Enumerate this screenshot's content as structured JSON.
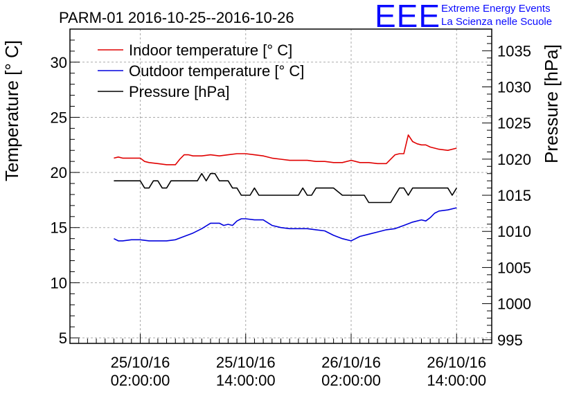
{
  "logo": {
    "letters": "EEE",
    "line1": "Extreme Energy Events",
    "line2": "La Scienza nelle Scuole"
  },
  "chart_data": {
    "type": "line",
    "title": "PARM-01 2016-10-25--2016-10-26",
    "ylabel": "Temperature [° C]",
    "y2label": "Pressure [hPa]",
    "xlabel": "",
    "x_unit": "hours since 2016-10-25 00:00:00",
    "xlim": [
      -6,
      42
    ],
    "ylim": [
      4.5,
      33
    ],
    "y2lim": [
      994.5,
      1038
    ],
    "y_ticks": [
      5,
      10,
      15,
      20,
      25,
      30
    ],
    "y2_ticks": [
      995,
      1000,
      1005,
      1010,
      1015,
      1020,
      1025,
      1030,
      1035
    ],
    "x_ticks": [
      {
        "x": 2,
        "date": "25/10/16",
        "time": "02:00:00"
      },
      {
        "x": 14,
        "date": "25/10/16",
        "time": "14:00:00"
      },
      {
        "x": 26,
        "date": "26/10/16",
        "time": "02:00:00"
      },
      {
        "x": 38,
        "date": "26/10/16",
        "time": "14:00:00"
      }
    ],
    "grid": true,
    "legend_position": "top-left",
    "series": [
      {
        "name": "Indoor temperature [° C]",
        "color": "#e00000",
        "axis": "left",
        "x": [
          -1,
          -0.5,
          0,
          1,
          2,
          2.5,
          3,
          4,
          5,
          6,
          6.5,
          7,
          7.5,
          8,
          9,
          10,
          11,
          12,
          13,
          14,
          15,
          16,
          17,
          18,
          19,
          20,
          21,
          22,
          23,
          24,
          25,
          26,
          27,
          28,
          29,
          30,
          31,
          31.5,
          32,
          32.5,
          33,
          33.5,
          34,
          34.5,
          35,
          36,
          37,
          38
        ],
        "values": [
          21.3,
          21.4,
          21.3,
          21.3,
          21.3,
          21.0,
          20.9,
          20.8,
          20.7,
          20.7,
          21.2,
          21.6,
          21.6,
          21.5,
          21.5,
          21.6,
          21.5,
          21.6,
          21.7,
          21.7,
          21.6,
          21.5,
          21.3,
          21.2,
          21.1,
          21.1,
          21.1,
          21.0,
          21.0,
          20.9,
          20.9,
          21.1,
          20.9,
          20.9,
          20.8,
          20.8,
          21.6,
          21.7,
          21.7,
          23.4,
          22.8,
          22.6,
          22.5,
          22.5,
          22.3,
          22.1,
          22.0,
          22.2
        ]
      },
      {
        "name": "Outdoor temperature [° C]",
        "color": "#0000dd",
        "axis": "left",
        "x": [
          -1,
          -0.5,
          0,
          1,
          2,
          3,
          4,
          5,
          6,
          7,
          8,
          9,
          10,
          11,
          11.5,
          12,
          12.5,
          13,
          13.5,
          14,
          15,
          16,
          17,
          18,
          19,
          20,
          21,
          22,
          23,
          24,
          25,
          26,
          27,
          28,
          29,
          30,
          31,
          32,
          33,
          34,
          34.5,
          35,
          35.5,
          36,
          37,
          38
        ],
        "values": [
          14.0,
          13.8,
          13.8,
          13.9,
          13.9,
          13.8,
          13.8,
          13.8,
          13.9,
          14.2,
          14.5,
          14.9,
          15.4,
          15.4,
          15.2,
          15.3,
          15.2,
          15.6,
          15.8,
          15.8,
          15.7,
          15.7,
          15.2,
          15.0,
          14.9,
          14.9,
          14.9,
          14.8,
          14.7,
          14.3,
          14.0,
          13.8,
          14.2,
          14.4,
          14.6,
          14.8,
          14.9,
          15.2,
          15.5,
          15.7,
          15.6,
          15.9,
          16.3,
          16.5,
          16.6,
          16.8
        ]
      },
      {
        "name": "Pressure [hPa]",
        "color": "#000000",
        "axis": "right",
        "x": [
          -1,
          0,
          1,
          2,
          2.5,
          3,
          3.5,
          4,
          4.5,
          5,
          5.5,
          6,
          7,
          8,
          8.5,
          9,
          9.5,
          10,
          10.5,
          11,
          11.5,
          12,
          12.5,
          13,
          13.5,
          14,
          14.5,
          15,
          15.5,
          16,
          16.5,
          17,
          18,
          19,
          20,
          20.5,
          21,
          21.5,
          22,
          22.5,
          23,
          24,
          25,
          26,
          27,
          27.5,
          28,
          29,
          30,
          30.5,
          31,
          31.5,
          32,
          32.5,
          33,
          34,
          35,
          36,
          37,
          37.5,
          38
        ],
        "values": [
          1017,
          1017,
          1017,
          1017,
          1016,
          1016,
          1017,
          1017,
          1016,
          1016,
          1017,
          1017,
          1017,
          1017,
          1017,
          1018,
          1017,
          1018,
          1018,
          1017,
          1017,
          1017,
          1016,
          1016,
          1015,
          1015,
          1015,
          1016,
          1015,
          1015,
          1015,
          1015,
          1015,
          1015,
          1015,
          1016,
          1015,
          1015,
          1016,
          1016,
          1016,
          1016,
          1015,
          1015,
          1015,
          1015,
          1014,
          1014,
          1014,
          1014,
          1015,
          1016,
          1016,
          1015,
          1016,
          1016,
          1016,
          1016,
          1016,
          1015,
          1016
        ]
      }
    ]
  }
}
